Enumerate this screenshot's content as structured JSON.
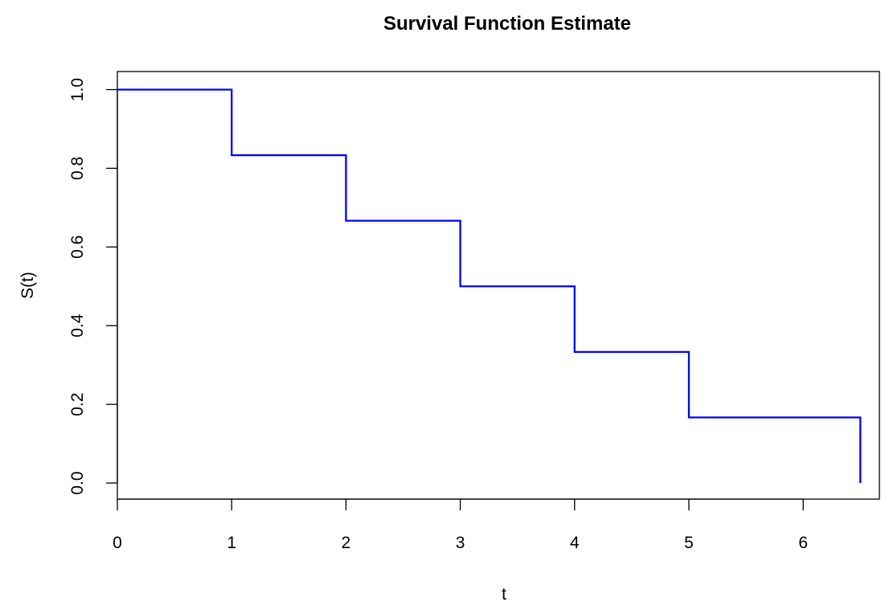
{
  "chart_data": {
    "type": "line",
    "step": true,
    "title": "Survival Function Estimate",
    "xlabel": "t",
    "ylabel": "S(t)",
    "xlim": [
      0,
      6.5
    ],
    "ylim": [
      0,
      1
    ],
    "xticks": [
      0,
      1,
      2,
      3,
      4,
      5,
      6
    ],
    "yticks": [
      0.0,
      0.2,
      0.4,
      0.6,
      0.8,
      1.0
    ],
    "xtick_labels": [
      "0",
      "1",
      "2",
      "3",
      "4",
      "5",
      "6"
    ],
    "ytick_labels": [
      "0.0",
      "0.2",
      "0.4",
      "0.6",
      "0.8",
      "1.0"
    ],
    "grid": false,
    "series": [
      {
        "color": "#0000ff",
        "x": [
          0,
          1,
          2,
          3,
          4,
          5,
          6.5
        ],
        "y": [
          1.0,
          0.8333,
          0.6667,
          0.5,
          0.3333,
          0.1667,
          0.0
        ]
      }
    ]
  }
}
